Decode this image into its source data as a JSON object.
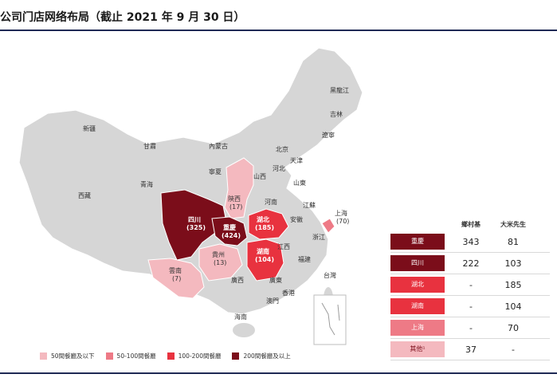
{
  "title": "公司门店网络布局（截止 2021 年 9 月 30 日）",
  "colors": {
    "tier_lt50": "#f4b9bf",
    "tier_50_100": "#ee7a86",
    "tier_100_200": "#e8323f",
    "tier_200plus": "#7b0d1a",
    "other_province": "#d6d6d6",
    "background_accent": "#1f2a55"
  },
  "map": {
    "provinces": {
      "xinjiang": "新疆",
      "xizang": "西藏",
      "qinghai": "青海",
      "gansu": "甘肅",
      "neimenggu": "內蒙古",
      "ningxia": "寧夏",
      "heilongjiang": "黑龍江",
      "jilin": "吉林",
      "liaoning": "遼寧",
      "beijing": "北京",
      "tianjin": "天津",
      "hebei": "河北",
      "shanxi": "山西",
      "shandong": "山東",
      "henan": "河南",
      "jiangsu": "江蘇",
      "anhui": "安徽",
      "zhejiang": "浙江",
      "jiangxi": "江西",
      "fujian": "福建",
      "taiwan": "台灣",
      "guangxi": "廣西",
      "guangdong": "廣東",
      "hainan": "海南",
      "hongkong": "香港",
      "macau": "澳門",
      "shaanxi": "陝西",
      "sichuan": "四川",
      "chongqing": "重慶",
      "guizhou": "貴州",
      "yunnan": "雲南",
      "hubei": "湖北",
      "hunan": "湖南",
      "shanghai": "上海"
    },
    "counts": {
      "shaanxi": "(17)",
      "sichuan": "(325)",
      "chongqing": "(424)",
      "guizhou": "(13)",
      "yunnan": "(7)",
      "hubei": "(185)",
      "hunan": "(104)",
      "shanghai": "(70)"
    }
  },
  "legend": [
    {
      "label": "50間餐廳及以下",
      "color": "#f4b9bf"
    },
    {
      "label": "50-100間餐廳",
      "color": "#ee7a86"
    },
    {
      "label": "100-200間餐廳",
      "color": "#e8323f"
    },
    {
      "label": "200間餐廳及以上",
      "color": "#7b0d1a"
    }
  ],
  "table": {
    "headers": [
      "鄉村基",
      "大米先生"
    ],
    "rows": [
      {
        "region": "重慶",
        "a": "343",
        "b": "81",
        "color": "#7b0d1a"
      },
      {
        "region": "四川",
        "a": "222",
        "b": "103",
        "color": "#7b0d1a"
      },
      {
        "region": "湖北",
        "a": "-",
        "b": "185",
        "color": "#e8323f"
      },
      {
        "region": "湖南",
        "a": "-",
        "b": "104",
        "color": "#e8323f"
      },
      {
        "region": "上海",
        "a": "-",
        "b": "70",
        "color": "#ee7a86"
      },
      {
        "region": "其他¹",
        "a": "37",
        "b": "-",
        "color": "#f4b9bf"
      }
    ]
  }
}
